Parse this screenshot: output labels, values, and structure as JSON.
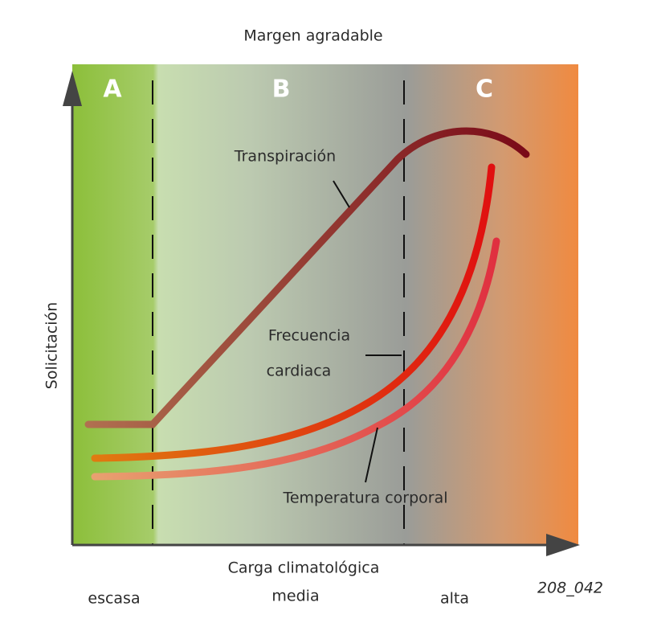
{
  "title": "Margen agradable",
  "zones": [
    "A",
    "B",
    "C"
  ],
  "y_axis_label": "Solicitación",
  "x_axis_label": "Carga climatológica",
  "x_levels": [
    "escasa",
    "media",
    "alta"
  ],
  "curves": [
    "Transpiración",
    "Frecuencia",
    "cardiaca",
    "Temperatura corporal"
  ],
  "code": "208_042"
}
